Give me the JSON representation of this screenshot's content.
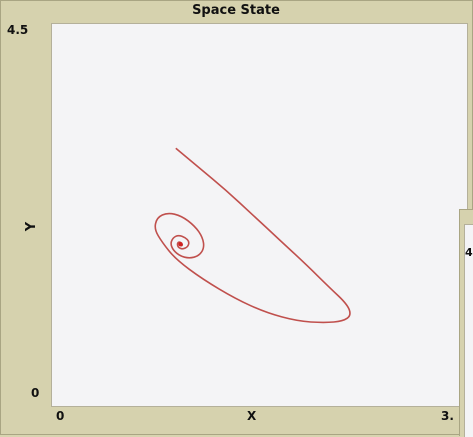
{
  "chart_data": {
    "type": "line",
    "title": "Space State",
    "xlabel": "X",
    "ylabel": "Y",
    "xlim": [
      0,
      3
    ],
    "ylim": [
      0,
      4.5
    ],
    "x_ticks": [
      "0",
      "3."
    ],
    "y_ticks": [
      "4.5",
      "0"
    ],
    "grid": false,
    "series": [
      {
        "color": "#c0504d",
        "x": [
          0.88,
          1.05,
          1.25,
          1.45,
          1.65,
          1.85,
          2.02,
          2.15,
          2.18,
          2.12,
          1.98,
          1.78,
          1.55,
          1.32,
          1.08,
          0.88,
          0.78,
          0.72,
          0.74,
          0.82,
          0.92,
          1.02,
          1.08,
          1.09,
          1.05,
          0.98,
          0.91,
          0.86,
          0.84,
          0.86,
          0.9,
          0.95,
          0.98,
          0.97,
          0.93,
          0.9,
          0.89,
          0.9,
          0.92,
          0.93,
          0.92,
          0.91,
          0.915
        ],
        "y": [
          3.05,
          2.82,
          2.55,
          2.25,
          1.95,
          1.65,
          1.38,
          1.18,
          1.05,
          0.98,
          0.96,
          0.98,
          1.08,
          1.25,
          1.48,
          1.72,
          1.92,
          2.08,
          2.22,
          2.28,
          2.24,
          2.12,
          1.98,
          1.85,
          1.76,
          1.73,
          1.76,
          1.83,
          1.91,
          1.98,
          2.01,
          1.98,
          1.93,
          1.87,
          1.84,
          1.86,
          1.9,
          1.93,
          1.92,
          1.89,
          1.88,
          1.895,
          1.9
        ]
      }
    ]
  },
  "second_panel": {
    "tick": "4"
  }
}
